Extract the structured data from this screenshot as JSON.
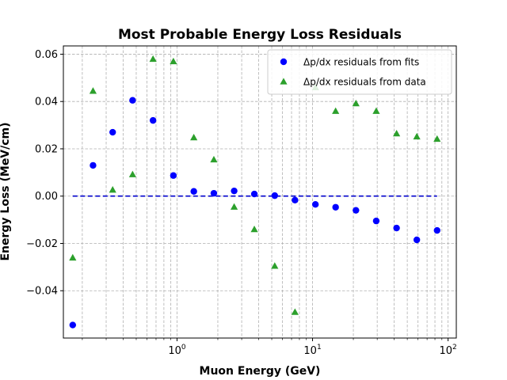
{
  "chart_data": {
    "type": "scatter",
    "title": "Most Probable Energy Loss Residuals",
    "xlabel": "Muon Energy (GeV)",
    "ylabel": "Energy Loss (MeV/cm)",
    "xscale": "log",
    "xlim": [
      0.145,
      115
    ],
    "ylim": [
      -0.06,
      0.0635
    ],
    "grid": true,
    "grid_minor": true,
    "legend_position": "upper-right",
    "yticks": [
      -0.04,
      -0.02,
      0.0,
      0.02,
      0.04,
      0.06
    ],
    "ytick_labels": [
      "−0.04",
      "−0.02",
      "0.00",
      "0.02",
      "0.04",
      "0.06"
    ],
    "xticks": [
      1,
      10,
      100
    ],
    "xtick_labels": [
      {
        "base": "10",
        "exp": "0"
      },
      {
        "base": "10",
        "exp": "1"
      },
      {
        "base": "10",
        "exp": "2"
      }
    ],
    "x": [
      0.17,
      0.24,
      0.335,
      0.47,
      0.665,
      0.94,
      1.33,
      1.87,
      2.64,
      3.72,
      5.26,
      7.42,
      10.5,
      14.8,
      20.9,
      29.5,
      41.7,
      58.8,
      83.0
    ],
    "series": [
      {
        "name": "Δp/dx residuals from fits",
        "color": "#0000ff",
        "marker": "circle",
        "values": [
          -0.0545,
          0.013,
          0.027,
          0.0405,
          0.032,
          0.0087,
          0.002,
          0.0012,
          0.0022,
          0.0009,
          0.0002,
          -0.0017,
          -0.0035,
          -0.0047,
          -0.006,
          -0.0105,
          -0.0135,
          -0.0185,
          -0.0145
        ]
      },
      {
        "name": "Δp/dx residuals from data",
        "color": "#2ca02c",
        "marker": "triangle",
        "values": [
          -0.026,
          0.0445,
          0.0027,
          0.0092,
          0.058,
          0.057,
          0.0248,
          0.0155,
          -0.0045,
          -0.014,
          -0.0295,
          -0.049,
          0.046,
          0.036,
          0.0392,
          0.036,
          0.0265,
          0.0252,
          0.0242
        ]
      }
    ],
    "reference_line": {
      "y": 0.0,
      "x_range": [
        0.17,
        83.0
      ],
      "color": "#0000cc",
      "style": "dashed"
    }
  }
}
